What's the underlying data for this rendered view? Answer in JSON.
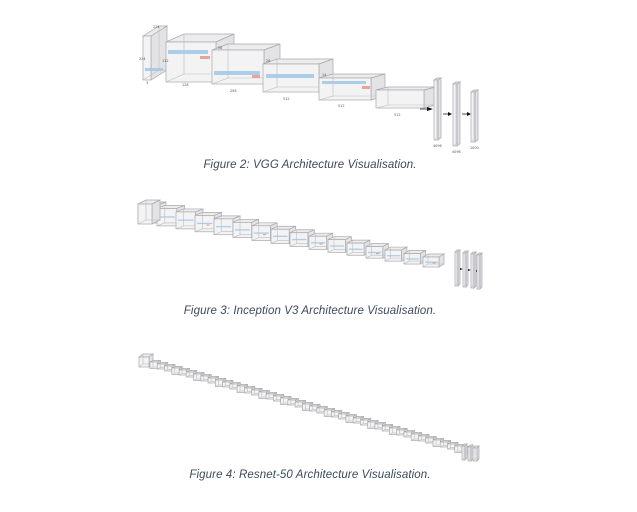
{
  "figures": [
    {
      "id": "vgg",
      "caption": "Figure 2: VGG Architecture Visualisation."
    },
    {
      "id": "inception",
      "caption": "Figure 3: Inception V3 Architecture Visualisation."
    },
    {
      "id": "resnet",
      "caption": "Figure 4: Resnet-50 Architecture Visualisation."
    }
  ],
  "vgg_labels": {
    "input_h": "224",
    "input_w": "224",
    "input_c": "3",
    "l1": "128",
    "l2": "256",
    "l3": "512",
    "l4": "512",
    "l5": "512",
    "fc1": "4096",
    "fc2": "4096",
    "fc3": "1000",
    "s1": "112",
    "s2": "56",
    "s3": "28",
    "s4": "14"
  },
  "colors": {
    "conv_band": "#9fc7e6",
    "conv_accent": "#e39c95",
    "box_stroke": "#a9a9ad",
    "caption": "#3c4a5c"
  }
}
